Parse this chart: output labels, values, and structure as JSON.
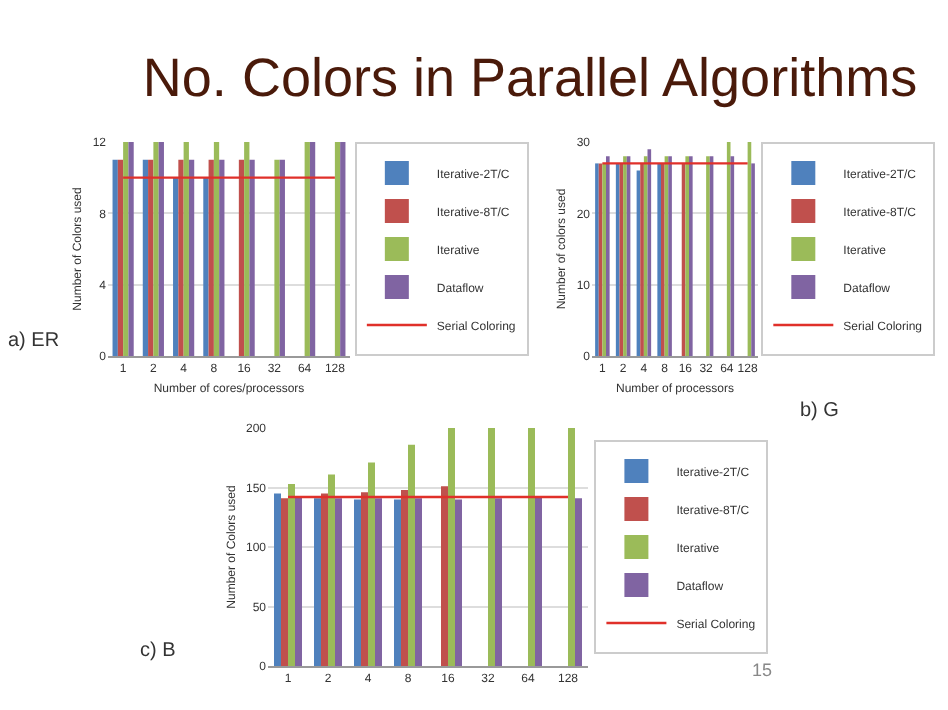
{
  "chart_data": [
    {
      "type": "bar",
      "title": "No. Colors in Parallel Algorithms",
      "xlabel": "Number of cores/processors",
      "ylabel": "Number of Colors used",
      "categories": [
        "1",
        "2",
        "4",
        "8",
        "16",
        "32",
        "64",
        "128"
      ],
      "ylim": [
        0,
        12
      ],
      "yticks": [
        0,
        4,
        8,
        12
      ],
      "grid": "y",
      "legend": "right",
      "annotations": [
        "a) ER"
      ],
      "series": [
        {
          "name": "Iterative-2T/C",
          "color": "#4f81bd",
          "values": [
            11,
            11,
            10,
            10,
            null,
            null,
            null,
            null
          ]
        },
        {
          "name": "Iterative-8T/C",
          "color": "#c0504d",
          "values": [
            11,
            11,
            11,
            11,
            11,
            null,
            null,
            null
          ]
        },
        {
          "name": "Iterative",
          "color": "#9bbb59",
          "values": [
            12,
            12,
            12,
            12,
            12,
            11,
            12,
            12
          ]
        },
        {
          "name": "Dataflow",
          "color": "#8064a2",
          "values": [
            12,
            12,
            11,
            11,
            11,
            11,
            12,
            12
          ]
        },
        {
          "name": "Serial Coloring",
          "type": "line",
          "marker": "none",
          "color": "#e0302a",
          "values": [
            10,
            10,
            10,
            10,
            10,
            10,
            10,
            10
          ]
        }
      ]
    },
    {
      "type": "bar",
      "xlabel": "Number of processors",
      "ylabel": "Number of colors used",
      "categories": [
        "1",
        "2",
        "4",
        "8",
        "16",
        "32",
        "64",
        "128"
      ],
      "ylim": [
        0,
        30
      ],
      "yticks": [
        0,
        10,
        20,
        30
      ],
      "grid": "y",
      "legend": "right",
      "annotations": [
        "b) G"
      ],
      "series": [
        {
          "name": "Iterative-2T/C",
          "color": "#4f81bd",
          "values": [
            27,
            27,
            26,
            27,
            null,
            null,
            null,
            null
          ]
        },
        {
          "name": "Iterative-8T/C",
          "color": "#c0504d",
          "values": [
            27,
            27,
            27,
            27,
            27,
            null,
            null,
            null
          ]
        },
        {
          "name": "Iterative",
          "color": "#9bbb59",
          "values": [
            27,
            28,
            28,
            28,
            28,
            28,
            30,
            30
          ]
        },
        {
          "name": "Dataflow",
          "color": "#8064a2",
          "values": [
            28,
            28,
            29,
            28,
            28,
            28,
            28,
            27
          ]
        },
        {
          "name": "Serial Coloring",
          "type": "line",
          "marker": "none",
          "color": "#e0302a",
          "values": [
            27,
            27,
            27,
            27,
            27,
            27,
            27,
            27
          ]
        }
      ]
    },
    {
      "type": "bar",
      "ylabel": "Number of Colors used",
      "categories": [
        "1",
        "2",
        "4",
        "8",
        "16",
        "32",
        "64",
        "128"
      ],
      "ylim": [
        0,
        200
      ],
      "yticks": [
        0,
        50,
        100,
        150,
        200
      ],
      "grid": "y",
      "legend": "right",
      "annotations": [
        "c) B",
        "15"
      ],
      "series": [
        {
          "name": "Iterative-2T/C",
          "color": "#4f81bd",
          "values": [
            145,
            141,
            140,
            140,
            null,
            null,
            null,
            null
          ]
        },
        {
          "name": "Iterative-8T/C",
          "color": "#c0504d",
          "values": [
            141,
            145,
            146,
            148,
            151,
            null,
            null,
            null
          ]
        },
        {
          "name": "Iterative",
          "color": "#9bbb59",
          "values": [
            153,
            161,
            171,
            186,
            200,
            200,
            200,
            200
          ]
        },
        {
          "name": "Dataflow",
          "color": "#8064a2",
          "values": [
            142,
            141,
            141,
            141,
            140,
            141,
            142,
            141
          ]
        },
        {
          "name": "Serial Coloring",
          "type": "line",
          "marker": "none",
          "color": "#e0302a",
          "values": [
            142,
            142,
            142,
            142,
            142,
            142,
            142,
            142
          ]
        }
      ]
    }
  ]
}
